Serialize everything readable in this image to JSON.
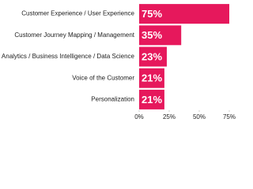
{
  "chart_data": {
    "type": "bar",
    "orientation": "horizontal",
    "categories": [
      "Customer Experience / User Experience",
      "Customer Journey Mapping / Management",
      "Analytics / Business Intelligence / Data Science",
      "Voice of the Customer",
      "Personalization"
    ],
    "values": [
      75,
      35,
      23,
      21,
      21
    ],
    "value_labels": [
      "75%",
      "35%",
      "23%",
      "21%",
      "21%"
    ],
    "color": "#e6185c",
    "xlim": [
      0,
      75
    ],
    "xticks": [
      {
        "value": 0,
        "label": "0%"
      },
      {
        "value": 25,
        "label": "25%"
      },
      {
        "value": 50,
        "label": "50%"
      },
      {
        "value": 75,
        "label": "75%"
      }
    ],
    "grid": false
  }
}
